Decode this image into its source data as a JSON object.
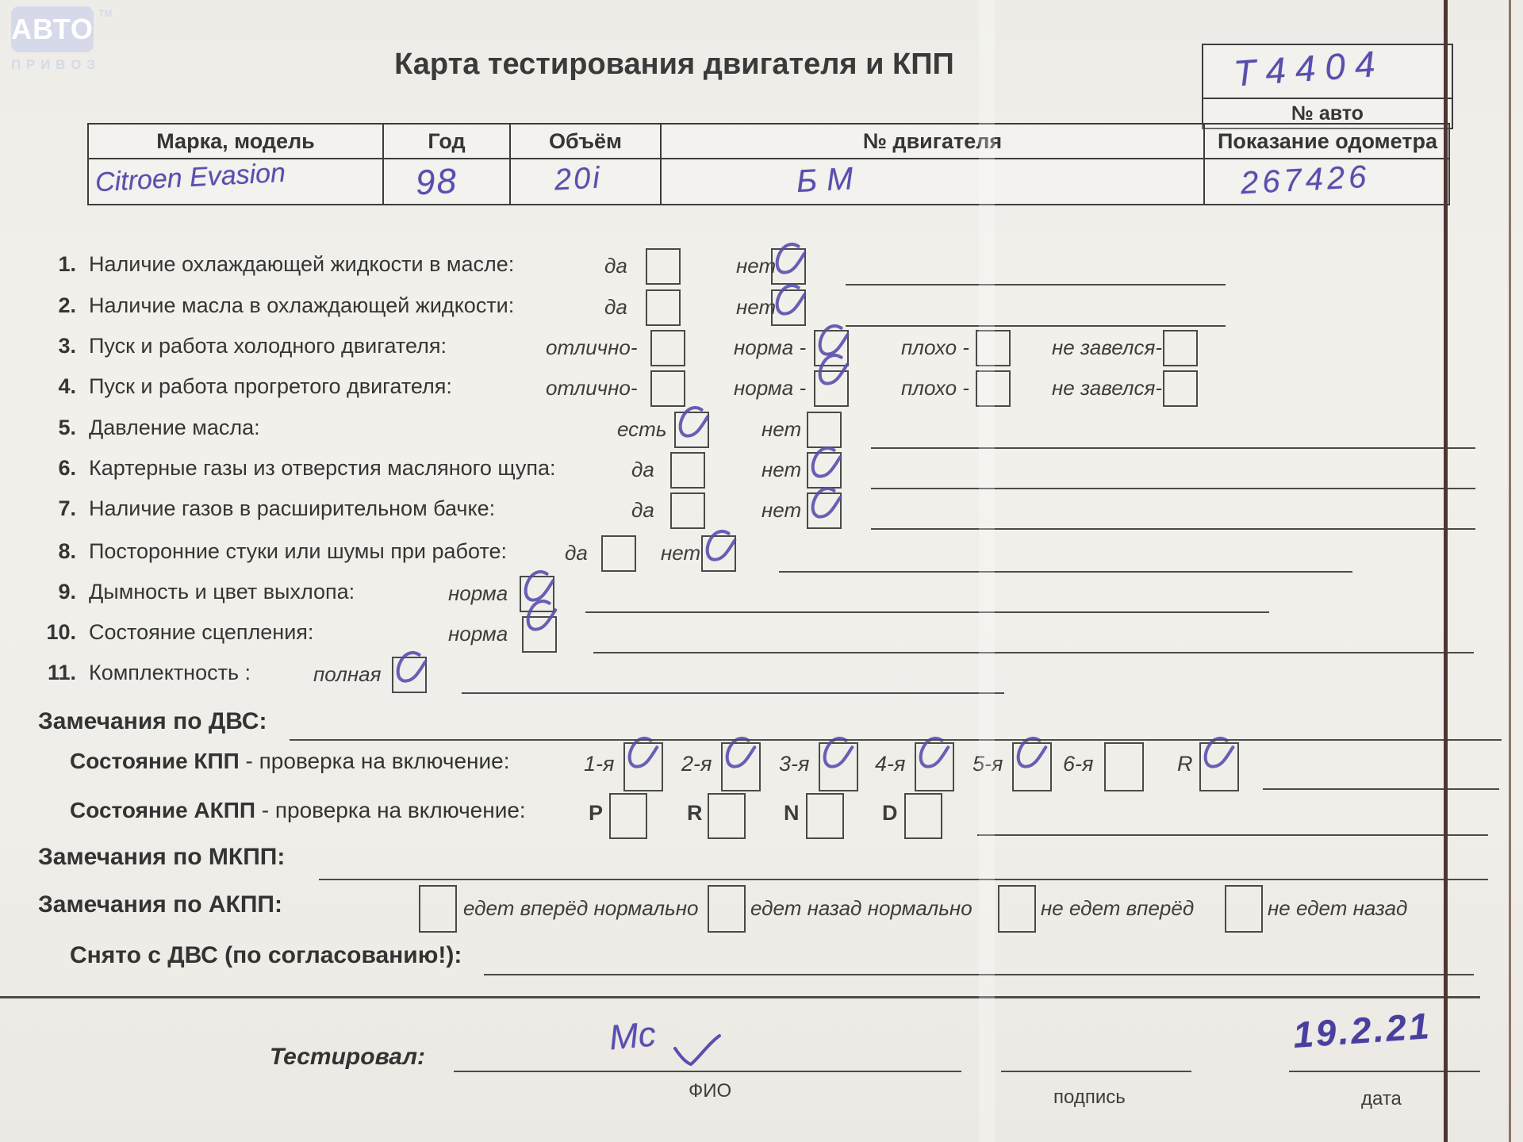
{
  "logo": {
    "brand_top": "АВТО",
    "tm": "ТМ",
    "brand_bottom": "ПРИВОЗ"
  },
  "title": "Карта тестирования двигателя  и КПП",
  "auto_number_box": {
    "value": "Т4404",
    "label": "№ авто"
  },
  "info_table": {
    "headers": [
      "Марка, модель",
      "Год",
      "Объём",
      "№ двигателя",
      "Показание одометра"
    ],
    "values": [
      "Citroen Evasion",
      "98",
      "20i",
      "БМ",
      "267426"
    ]
  },
  "checklist": [
    {
      "num": "1.",
      "text": "Наличие охлаждающей жидкости в масле:",
      "options": [
        {
          "label": "да",
          "checked": false
        },
        {
          "label": "нет",
          "checked": true
        }
      ]
    },
    {
      "num": "2.",
      "text": "Наличие масла в охлаждающей жидкости:",
      "options": [
        {
          "label": "да",
          "checked": false
        },
        {
          "label": "нет",
          "checked": true
        }
      ]
    },
    {
      "num": "3.",
      "text": "Пуск и работа холодного двигателя:",
      "options": [
        {
          "label": "отлично-",
          "checked": false
        },
        {
          "label": "норма -",
          "checked": true
        },
        {
          "label": "плохо -",
          "checked": false
        },
        {
          "label": "не завелся-",
          "checked": false
        }
      ]
    },
    {
      "num": "4.",
      "text": "Пуск и работа прогретого двигателя:",
      "options": [
        {
          "label": "отлично-",
          "checked": false
        },
        {
          "label": "норма -",
          "checked": true
        },
        {
          "label": "плохо -",
          "checked": false
        },
        {
          "label": "не завелся-",
          "checked": false
        }
      ]
    },
    {
      "num": "5.",
      "text": "Давление масла:",
      "options": [
        {
          "label": "есть",
          "checked": true
        },
        {
          "label": "нет",
          "checked": false
        }
      ]
    },
    {
      "num": "6.",
      "text": "Картерные газы из отверстия масляного щупа:",
      "options": [
        {
          "label": "да",
          "checked": false
        },
        {
          "label": "нет",
          "checked": true
        }
      ]
    },
    {
      "num": "7.",
      "text": "Наличие газов в расширительном бачке:",
      "options": [
        {
          "label": "да",
          "checked": false
        },
        {
          "label": "нет",
          "checked": true
        }
      ]
    },
    {
      "num": "8.",
      "text": "Посторонние стуки или шумы при работе:",
      "options": [
        {
          "label": "да",
          "checked": false
        },
        {
          "label": "нет",
          "checked": true
        }
      ]
    },
    {
      "num": "9.",
      "text": "Дымность и цвет выхлопа:",
      "options": [
        {
          "label": "норма",
          "checked": true
        }
      ]
    },
    {
      "num": "10.",
      "text": "Состояние сцепления:",
      "options": [
        {
          "label": "норма",
          "checked": true
        }
      ]
    },
    {
      "num": "11.",
      "text": "Комплектность :",
      "options": [
        {
          "label": "полная",
          "checked": true
        }
      ]
    }
  ],
  "sections": {
    "dvs_remarks": "Замечания по ДВС:",
    "kpp": {
      "bold": "Состояние КПП",
      "rest": " - проверка на включение:",
      "options": [
        {
          "label": "1-я",
          "checked": true
        },
        {
          "label": "2-я",
          "checked": true
        },
        {
          "label": "3-я",
          "checked": true
        },
        {
          "label": "4-я",
          "checked": true
        },
        {
          "label": "5-я",
          "checked": true
        },
        {
          "label": "6-я",
          "checked": false
        },
        {
          "label": "R",
          "checked": true
        }
      ]
    },
    "akpp": {
      "bold": "Состояние АКПП",
      "rest": " - проверка на включение:",
      "options": [
        {
          "label": "P",
          "checked": false
        },
        {
          "label": "R",
          "checked": false
        },
        {
          "label": "N",
          "checked": false
        },
        {
          "label": "D",
          "checked": false
        }
      ]
    },
    "mkpp_remarks": "Замечания по МКПП:",
    "akpp_remarks": {
      "label": "Замечания по АКПП:",
      "options": [
        {
          "label": "едет вперёд нормально",
          "checked": false
        },
        {
          "label": "едет назад нормально",
          "checked": false
        },
        {
          "label": "не едет вперёд",
          "checked": false
        },
        {
          "label": "не едет назад",
          "checked": false
        }
      ]
    },
    "removed": "Снято с ДВС (по согласованию!):"
  },
  "footer": {
    "tested_by_label": "Тестировал:",
    "signature_value": "Мс",
    "fio_label": "ФИО",
    "sign_label": "подпись",
    "date_label": "дата",
    "date_value": "19.2.21"
  },
  "pen_color": "#584fae"
}
